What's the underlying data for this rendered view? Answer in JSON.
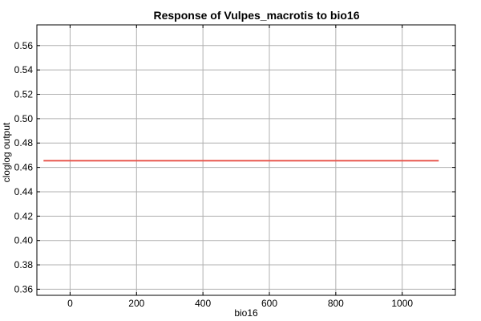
{
  "chart_data": {
    "type": "line",
    "title": "Response of Vulpes_macrotis to bio16",
    "xlabel": "bio16",
    "ylabel": "cloglog output",
    "xlim": [
      -100,
      1160
    ],
    "ylim": [
      0.355,
      0.577
    ],
    "xticks": [
      0,
      200,
      400,
      600,
      800,
      1000
    ],
    "yticks": [
      0.36,
      0.38,
      0.4,
      0.42,
      0.44,
      0.46,
      0.48,
      0.5,
      0.52,
      0.54,
      0.56
    ],
    "xtick_labels": [
      "0",
      "200",
      "400",
      "600",
      "800",
      "1000"
    ],
    "ytick_labels": [
      "0.36",
      "0.38",
      "0.40",
      "0.42",
      "0.44",
      "0.46",
      "0.48",
      "0.50",
      "0.52",
      "0.54",
      "0.56"
    ],
    "grid": true,
    "series": [
      {
        "color": "#e8584f",
        "x": [
          -80,
          1110
        ],
        "y": [
          0.4655,
          0.4655
        ]
      }
    ]
  }
}
